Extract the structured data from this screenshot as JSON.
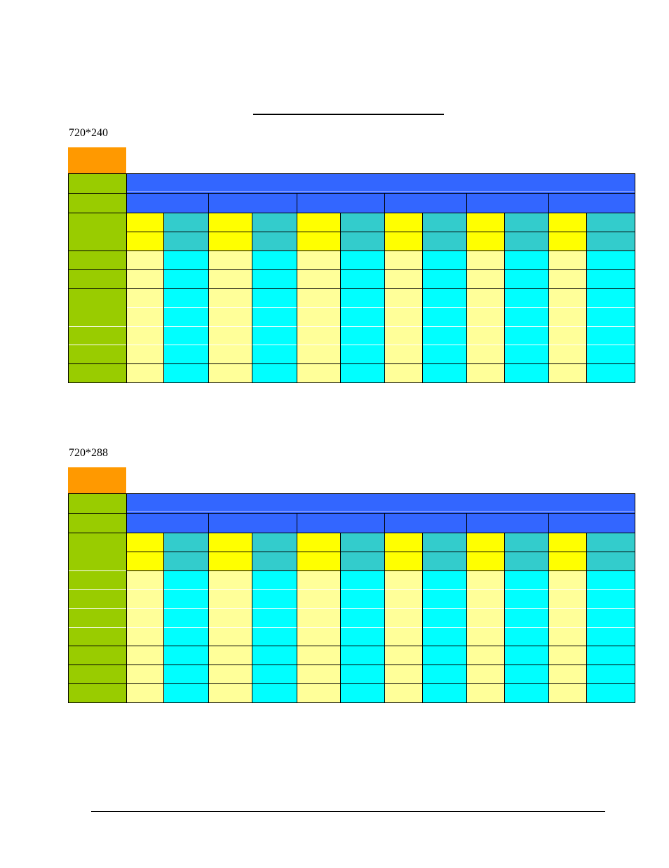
{
  "document": {
    "tables": [
      {
        "caption": "720*240",
        "variant": "a"
      },
      {
        "caption": "720*288",
        "variant": "b"
      }
    ]
  },
  "colors": {
    "orange": "#ff9900",
    "green": "#99cc00",
    "blue": "#3366ff",
    "yellow": "#ffff00",
    "teal": "#33cccc",
    "light_yellow": "#ffff99",
    "cyan": "#00ffff",
    "grid_white": "#ffffff",
    "grid_black": "#000000"
  }
}
